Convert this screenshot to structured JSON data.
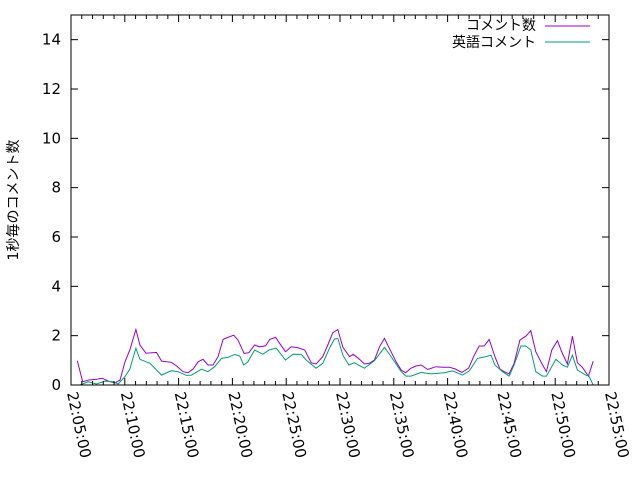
{
  "chart_data": {
    "type": "line",
    "title": "",
    "xlabel": "",
    "ylabel": "1秒毎のコメント数",
    "xlim": [
      "22:05:00",
      "22:55:00"
    ],
    "ylim": [
      0,
      15
    ],
    "x_ticks": [
      "22:05:00",
      "22:10:00",
      "22:15:00",
      "22:20:00",
      "22:25:00",
      "22:30:00",
      "22:35:00",
      "22:40:00",
      "22:45:00",
      "22:50:00",
      "22:55:00"
    ],
    "y_ticks": [
      0,
      2,
      4,
      6,
      8,
      10,
      12,
      14
    ],
    "grid": false,
    "legend_position": "top-right",
    "series": [
      {
        "name": "コメント数",
        "color": "#9400d3",
        "x": [
          "22:05:35",
          "22:06:05",
          "22:06:36",
          "22:07:23",
          "22:07:54",
          "22:08:28",
          "22:09:05",
          "22:09:33",
          "22:10:01",
          "22:10:28",
          "22:11:02",
          "22:11:24",
          "22:11:58",
          "22:12:57",
          "22:13:25",
          "22:14:20",
          "22:14:49",
          "22:15:25",
          "22:15:53",
          "22:16:21",
          "22:16:49",
          "22:17:16",
          "22:17:44",
          "22:18:12",
          "22:18:40",
          "22:19:08",
          "22:19:35",
          "22:20:07",
          "22:20:31",
          "22:21:05",
          "22:21:32",
          "22:22:04",
          "22:22:32",
          "22:23:05",
          "22:23:28",
          "22:24:01",
          "22:24:23",
          "22:24:56",
          "22:25:28",
          "22:26:05",
          "22:26:43",
          "22:27:20",
          "22:27:47",
          "22:28:24",
          "22:28:52",
          "22:29:20",
          "22:29:48",
          "22:30:16",
          "22:30:53",
          "22:31:15",
          "22:31:49",
          "22:32:16",
          "22:32:44",
          "22:33:12",
          "22:33:40",
          "22:34:08",
          "22:34:35",
          "22:35:13",
          "22:35:41",
          "22:36:05",
          "22:36:36",
          "22:37:04",
          "22:37:32",
          "22:38:09",
          "22:38:55",
          "22:39:32",
          "22:40:10",
          "22:40:43",
          "22:41:20",
          "22:41:57",
          "22:42:29",
          "22:42:56",
          "22:43:24",
          "22:43:52",
          "22:44:24",
          "22:44:52",
          "22:45:16",
          "22:45:43",
          "22:46:11",
          "22:46:43",
          "22:47:16",
          "22:47:44",
          "22:48:12",
          "22:48:43",
          "22:49:11",
          "22:49:41",
          "22:50:12",
          "22:50:40",
          "22:51:08",
          "22:51:36",
          "22:52:04",
          "22:52:31",
          "22:53:05",
          "22:53:32"
        ],
        "y": [
          0.98,
          0.13,
          0.2,
          0.23,
          0.27,
          0.16,
          0.09,
          0.2,
          0.94,
          1.42,
          2.25,
          1.62,
          1.29,
          1.32,
          0.97,
          0.92,
          0.77,
          0.54,
          0.5,
          0.65,
          0.94,
          1.04,
          0.81,
          0.81,
          1.15,
          1.85,
          1.93,
          2.02,
          1.82,
          1.28,
          1.31,
          1.62,
          1.55,
          1.59,
          1.85,
          1.93,
          1.69,
          1.35,
          1.55,
          1.51,
          1.42,
          0.9,
          0.85,
          1.15,
          1.62,
          2.12,
          2.25,
          1.53,
          1.15,
          1.24,
          1.04,
          0.85,
          0.88,
          1.01,
          1.55,
          1.89,
          1.49,
          0.94,
          0.61,
          0.5,
          0.68,
          0.77,
          0.81,
          0.63,
          0.74,
          0.72,
          0.72,
          0.65,
          0.51,
          0.68,
          1.21,
          1.58,
          1.58,
          1.85,
          1.15,
          0.64,
          0.54,
          0.45,
          0.88,
          1.82,
          1.98,
          2.2,
          1.35,
          0.9,
          0.54,
          1.42,
          1.79,
          1.28,
          0.85,
          1.98,
          0.9,
          0.72,
          0.36,
          0.97
        ]
      },
      {
        "name": "英語コメント",
        "color": "#009e73",
        "x": [
          "22:05:50",
          "22:06:36",
          "22:07:23",
          "22:08:09",
          "22:08:55",
          "22:09:23",
          "22:10:01",
          "22:10:28",
          "22:11:02",
          "22:11:24",
          "22:12:20",
          "22:13:25",
          "22:14:20",
          "22:14:57",
          "22:15:44",
          "22:16:12",
          "22:17:07",
          "22:17:44",
          "22:18:21",
          "22:18:59",
          "22:19:35",
          "22:20:13",
          "22:20:41",
          "22:21:03",
          "22:21:27",
          "22:22:04",
          "22:22:50",
          "22:23:24",
          "22:24:05",
          "22:24:56",
          "22:25:37",
          "22:26:24",
          "22:26:52",
          "22:27:47",
          "22:28:24",
          "22:29:02",
          "22:29:29",
          "22:29:48",
          "22:30:16",
          "22:30:49",
          "22:31:20",
          "22:32:16",
          "22:33:12",
          "22:34:08",
          "22:34:45",
          "22:35:41",
          "22:36:08",
          "22:36:36",
          "22:37:32",
          "22:38:28",
          "22:39:42",
          "22:40:28",
          "22:41:23",
          "22:42:01",
          "22:42:47",
          "22:43:34",
          "22:44:02",
          "22:44:24",
          "22:45:06",
          "22:45:43",
          "22:46:11",
          "22:46:49",
          "22:47:16",
          "22:47:44",
          "22:48:12",
          "22:48:49",
          "22:49:11",
          "22:50:04",
          "22:50:40",
          "22:51:08",
          "22:51:36",
          "22:52:04",
          "22:52:50",
          "22:53:08",
          "22:53:32"
        ],
        "y": [
          0,
          0.13,
          0.04,
          0.16,
          0.13,
          0.04,
          0.34,
          0.64,
          1.49,
          1.04,
          0.88,
          0.4,
          0.58,
          0.54,
          0.39,
          0.4,
          0.64,
          0.54,
          0.74,
          1.08,
          1.12,
          1.24,
          1.17,
          0.81,
          0.94,
          1.42,
          1.25,
          1.42,
          1.49,
          1.01,
          1.25,
          1.24,
          1.01,
          0.68,
          0.88,
          1.5,
          1.86,
          1.89,
          1.21,
          0.81,
          0.9,
          0.68,
          0.98,
          1.53,
          1.15,
          0.54,
          0.36,
          0.36,
          0.51,
          0.45,
          0.5,
          0.57,
          0.4,
          0.57,
          1.08,
          1.15,
          1.21,
          0.81,
          0.54,
          0.36,
          0.81,
          1.58,
          1.58,
          1.42,
          0.54,
          0.36,
          0.36,
          1.04,
          0.81,
          0.72,
          1.21,
          0.61,
          0.4,
          0.36,
          0
        ]
      }
    ]
  }
}
